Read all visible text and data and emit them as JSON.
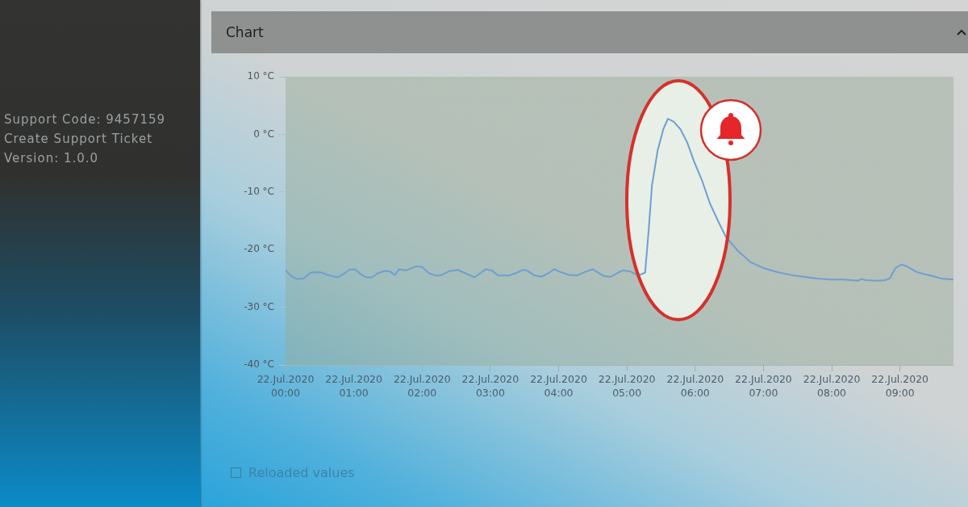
{
  "chart_data": {
    "type": "line",
    "title": "Chart",
    "annotations": [
      "Support Code: 9457159",
      "Create Support Ticket",
      "Version: 1.0.0",
      "Reloaded values"
    ],
    "x": [
      "2020-07-22T00:00",
      "2020-07-22T00:05",
      "2020-07-22T00:10",
      "2020-07-22T00:16",
      "2020-07-22T00:22",
      "2020-07-22T00:28",
      "2020-07-22T00:32",
      "2020-07-22T00:37",
      "2020-07-22T00:46",
      "2020-07-22T00:52",
      "2020-07-22T00:56",
      "2020-07-22T01:01",
      "2020-07-22T01:07",
      "2020-07-22T01:11",
      "2020-07-22T01:16",
      "2020-07-22T01:21",
      "2020-07-22T01:27",
      "2020-07-22T01:32",
      "2020-07-22T01:36",
      "2020-07-22T01:40",
      "2020-07-22T01:46",
      "2020-07-22T01:55",
      "2020-07-22T02:00",
      "2020-07-22T02:06",
      "2020-07-22T02:12",
      "2020-07-22T02:16",
      "2020-07-22T02:23",
      "2020-07-22T02:31",
      "2020-07-22T02:38",
      "2020-07-22T02:46",
      "2020-07-22T02:56",
      "2020-07-22T03:01",
      "2020-07-22T03:07",
      "2020-07-22T03:16",
      "2020-07-22T03:22",
      "2020-07-22T03:29",
      "2020-07-22T03:32",
      "2020-07-22T03:39",
      "2020-07-22T03:45",
      "2020-07-22T03:51",
      "2020-07-22T03:56",
      "2020-07-22T04:02",
      "2020-07-22T04:09",
      "2020-07-22T04:16",
      "2020-07-22T04:24",
      "2020-07-22T04:30",
      "2020-07-22T04:34",
      "2020-07-22T04:40",
      "2020-07-22T04:46",
      "2020-07-22T04:53",
      "2020-07-22T04:57",
      "2020-07-22T05:03",
      "2020-07-22T05:08",
      "2020-07-22T05:11",
      "2020-07-22T05:16",
      "2020-07-22T05:19",
      "2020-07-22T05:22",
      "2020-07-22T05:27",
      "2020-07-22T05:32",
      "2020-07-22T05:36",
      "2020-07-22T05:41",
      "2020-07-22T05:47",
      "2020-07-22T05:53",
      "2020-07-22T05:59",
      "2020-07-22T06:06",
      "2020-07-22T06:13",
      "2020-07-22T06:20",
      "2020-07-22T06:27",
      "2020-07-22T06:37",
      "2020-07-22T06:49",
      "2020-07-22T07:00",
      "2020-07-22T07:12",
      "2020-07-22T07:24",
      "2020-07-22T07:35",
      "2020-07-22T07:47",
      "2020-07-22T07:59",
      "2020-07-22T08:11",
      "2020-07-22T08:23",
      "2020-07-22T08:26",
      "2020-07-22T08:30",
      "2020-07-22T08:40",
      "2020-07-22T08:47",
      "2020-07-22T08:51",
      "2020-07-22T08:56",
      "2020-07-22T09:01",
      "2020-07-22T09:05",
      "2020-07-22T09:15",
      "2020-07-22T09:22",
      "2020-07-22T09:27",
      "2020-07-22T09:36",
      "2020-07-22T09:47"
    ],
    "series": [
      {
        "color": "#6d9fd2",
        "values": [
          -23.6,
          -24.6,
          -25.1,
          -25.0,
          -24.0,
          -23.9,
          -24.0,
          -24.4,
          -24.8,
          -24.1,
          -23.5,
          -23.4,
          -24.4,
          -24.8,
          -24.8,
          -24.1,
          -23.7,
          -23.8,
          -24.4,
          -23.4,
          -23.6,
          -22.9,
          -23.0,
          -24.1,
          -24.5,
          -24.5,
          -23.8,
          -23.5,
          -24.1,
          -24.8,
          -23.4,
          -23.6,
          -24.5,
          -24.5,
          -24.1,
          -23.5,
          -23.6,
          -24.5,
          -24.7,
          -24.1,
          -23.4,
          -23.9,
          -24.4,
          -24.5,
          -23.8,
          -23.4,
          -23.9,
          -24.6,
          -24.7,
          -23.9,
          -23.6,
          -23.8,
          -24.3,
          -24.4,
          -24.0,
          -16.9,
          -8.9,
          -2.8,
          0.9,
          2.7,
          2.2,
          0.9,
          -1.4,
          -4.7,
          -8.0,
          -12.0,
          -15.0,
          -17.8,
          -20.1,
          -22.2,
          -23.2,
          -23.9,
          -24.4,
          -24.7,
          -25.0,
          -25.2,
          -25.2,
          -25.4,
          -25.1,
          -25.3,
          -25.4,
          -25.3,
          -25.0,
          -23.2,
          -22.6,
          -22.8,
          -23.9,
          -24.3,
          -24.5,
          -25.0,
          -25.2
        ]
      }
    ],
    "xlim": [
      "2020-07-22T00:00",
      "2020-07-22T09:47"
    ],
    "xticks": [
      {
        "value": "2020-07-22T00:00",
        "label": "22.Jul.2020 00:00"
      },
      {
        "value": "2020-07-22T01:00",
        "label": "22.Jul.2020 01:00"
      },
      {
        "value": "2020-07-22T02:00",
        "label": "22.Jul.2020 02:00"
      },
      {
        "value": "2020-07-22T03:00",
        "label": "22.Jul.2020 03:00"
      },
      {
        "value": "2020-07-22T04:00",
        "label": "22.Jul.2020 04:00"
      },
      {
        "value": "2020-07-22T05:00",
        "label": "22.Jul.2020 05:00"
      },
      {
        "value": "2020-07-22T06:00",
        "label": "22.Jul.2020 06:00"
      },
      {
        "value": "2020-07-22T07:00",
        "label": "22.Jul.2020 07:00"
      },
      {
        "value": "2020-07-22T08:00",
        "label": "22.Jul.2020 08:00"
      },
      {
        "value": "2020-07-22T09:00",
        "label": "22.Jul.2020 09:00"
      }
    ],
    "ylim": [
      -40,
      10
    ],
    "yticks": [
      {
        "value": -40,
        "label": "-40 °C"
      },
      {
        "value": -30,
        "label": "-30 °C"
      },
      {
        "value": -20,
        "label": "-20 °C"
      },
      {
        "value": -10,
        "label": "-10 °C"
      },
      {
        "value": 0,
        "label": "0 °C"
      },
      {
        "value": 10,
        "label": "10 °C"
      }
    ],
    "grid": false,
    "legend": false
  }
}
